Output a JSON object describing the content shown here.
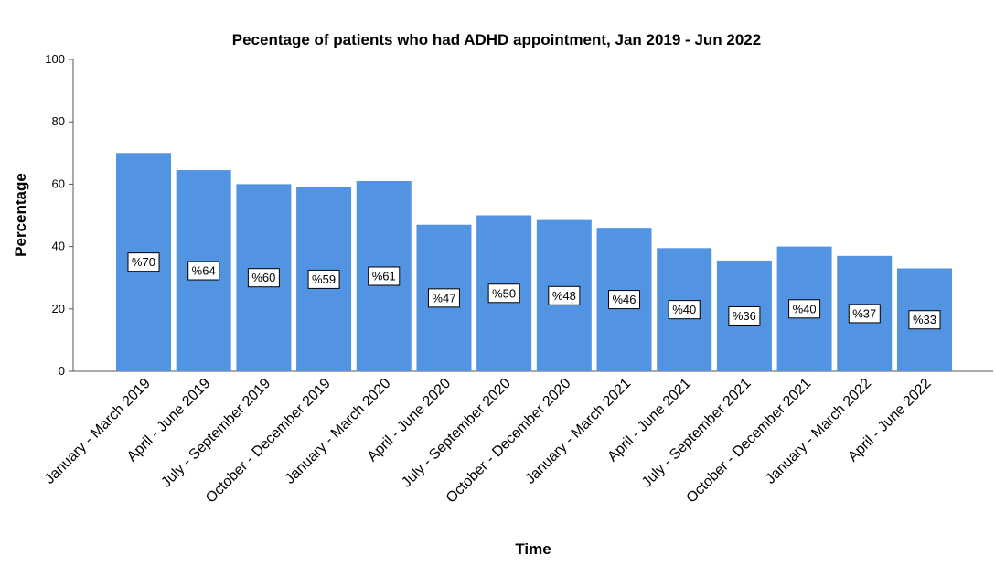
{
  "chart_data": {
    "type": "bar",
    "title": "Pecentage of patients who had ADHD appointment, Jan 2019 - Jun 2022",
    "xlabel": "Time",
    "ylabel": "Percentage",
    "ylim": [
      0,
      100
    ],
    "yticks": [
      0,
      20,
      40,
      60,
      80,
      100
    ],
    "categories": [
      "January - March 2019",
      "April - June 2019",
      "July - September 2019",
      "October - December 2019",
      "January - March 2020",
      "April - June 2020",
      "July - September 2020",
      "October - December 2020",
      "January - March 2021",
      "April - June 2021",
      "July - September 2021",
      "October - December 2021",
      "January - March 2022",
      "April - June 2022"
    ],
    "values": [
      70,
      64.5,
      60,
      59,
      61,
      47,
      50,
      48.5,
      46,
      39.5,
      35.5,
      40,
      37,
      33
    ],
    "data_labels": [
      "%70",
      "%64",
      "%60",
      "%59",
      "%61",
      "%47",
      "%50",
      "%48",
      "%46",
      "%40",
      "%36",
      "%40",
      "%37",
      "%33"
    ],
    "bar_color": "#5294E2",
    "grid": false,
    "legend": "none"
  }
}
